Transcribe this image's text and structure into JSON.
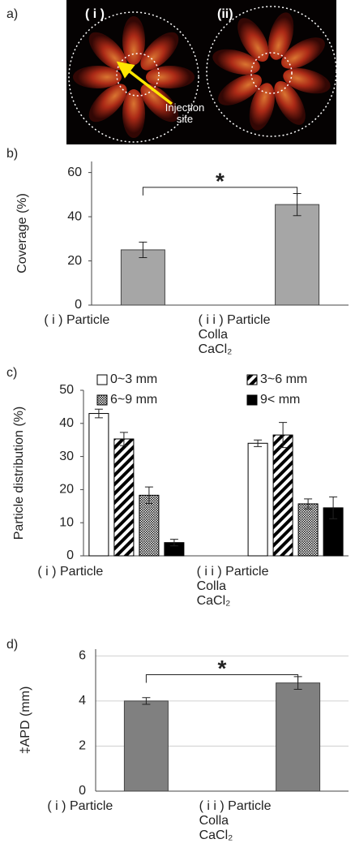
{
  "image_panel": {
    "panel": "a)",
    "labels": [
      "( i )",
      "(ii)"
    ],
    "annotation": "Injection site"
  },
  "chart_data": [
    {
      "type": "bar",
      "panel": "b)",
      "ylabel": "Coverage (%)",
      "categories": [
        "( i ) Particle",
        "( i i ) Particle\nColla\nCaCl₂"
      ],
      "values": [
        25,
        45.5
      ],
      "errors": [
        3.5,
        5
      ],
      "color": "#a6a6a6",
      "ylim": [
        0,
        65
      ],
      "yticks": [
        0,
        20,
        40,
        60
      ],
      "grid": false,
      "annotation": "*"
    },
    {
      "type": "grouped_bar",
      "panel": "c)",
      "ylabel": "Particle distribution (%)",
      "categories": [
        "( i ) Particle",
        "( i i ) Particle\nColla\nCaCl₂"
      ],
      "series": [
        {
          "name": "0~3 mm",
          "color": "#ffffff",
          "pattern": "solid",
          "values": [
            43,
            34
          ],
          "errors": [
            1.3,
            1
          ]
        },
        {
          "name": "3~6 mm",
          "color": "#ffffff",
          "pattern": "diagonal",
          "values": [
            35.3,
            36.5
          ],
          "errors": [
            2,
            3.8
          ]
        },
        {
          "name": "6~9 mm",
          "color": "#ffffff",
          "pattern": "dots",
          "values": [
            18.3,
            15.7
          ],
          "errors": [
            2.5,
            1.5
          ]
        },
        {
          "name": "9< mm",
          "color": "#000000",
          "pattern": "solid",
          "values": [
            4,
            14.5
          ],
          "errors": [
            1,
            3.3
          ]
        }
      ],
      "ylim": [
        0,
        50
      ],
      "yticks": [
        0,
        10,
        20,
        30,
        40,
        50
      ],
      "grid": false
    },
    {
      "type": "bar",
      "panel": "d)",
      "ylabel": "‡APD (mm)",
      "categories": [
        "( i ) Particle",
        "( i i ) Particle\nColla\nCaCl₂"
      ],
      "values": [
        4,
        4.8
      ],
      "errors": [
        0.15,
        0.28
      ],
      "color": "#808080",
      "ylim": [
        0,
        6.3
      ],
      "yticks": [
        0,
        2,
        4,
        6
      ],
      "grid": true,
      "annotation": "*"
    }
  ]
}
